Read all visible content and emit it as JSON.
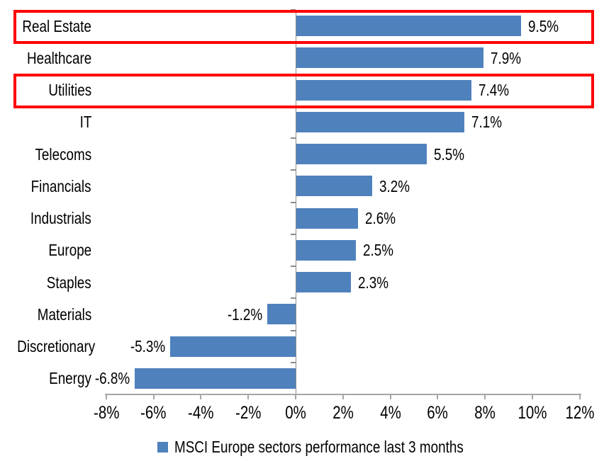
{
  "chart_data": {
    "type": "bar",
    "orientation": "horizontal",
    "title": "",
    "categories": [
      "Real Estate",
      "Healthcare",
      "Utilities",
      "IT",
      "Telecoms",
      "Financials",
      "Industrials",
      "Europe",
      "Staples",
      "Materials",
      "Discretionary",
      "Energy"
    ],
    "values": [
      9.5,
      7.9,
      7.4,
      7.1,
      5.5,
      3.2,
      2.6,
      2.5,
      2.3,
      -1.2,
      -5.3,
      -6.8
    ],
    "value_labels": [
      "9.5%",
      "7.9%",
      "7.4%",
      "7.1%",
      "5.5%",
      "3.2%",
      "2.6%",
      "2.5%",
      "2.3%",
      "-1.2%",
      "-5.3%",
      "-6.8%"
    ],
    "x_tick_labels": [
      "-8%",
      "-6%",
      "-4%",
      "-2%",
      "0%",
      "2%",
      "4%",
      "6%",
      "8%",
      "10%",
      "12%"
    ],
    "x_min": -8,
    "x_max": 12,
    "x_tick_step": 2,
    "xlim": [
      -8,
      12
    ],
    "grid": false,
    "legend_position": "bottom",
    "legend": "MSCI Europe sectors performance last 3 months",
    "highlighted_categories": [
      "Real Estate",
      "Utilities"
    ],
    "colors": {
      "bar": "#4F81BD",
      "highlight_border": "#FF0000",
      "axis_line": "#A6A6A6",
      "zero_line": "#8C8C8C",
      "text": "#000000"
    }
  }
}
